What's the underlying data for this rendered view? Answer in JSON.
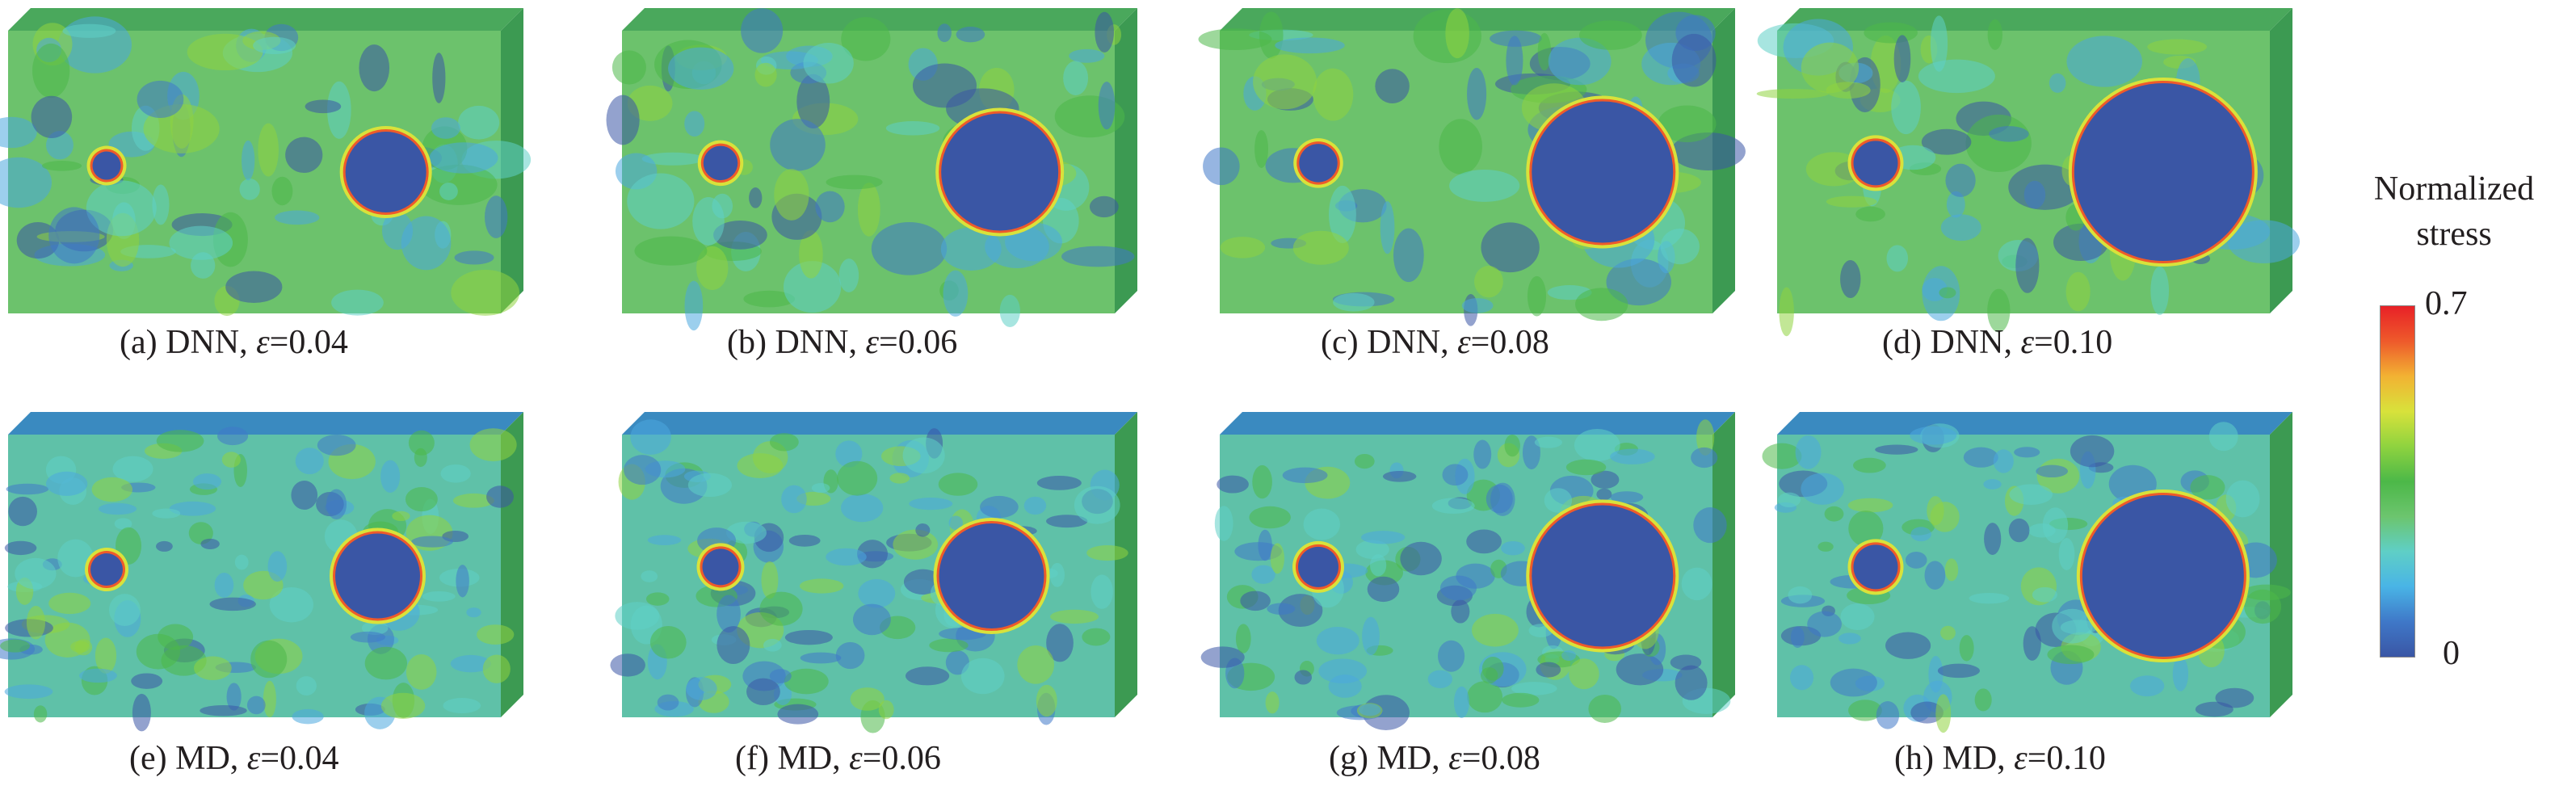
{
  "panels": [
    {
      "prefix": "(a) DNN, ",
      "eps_symbol": "ε",
      "eps_value": "=0.04",
      "method": "DNN",
      "strain": 0.04
    },
    {
      "prefix": "(b) DNN, ",
      "eps_symbol": "ε",
      "eps_value": "=0.06",
      "method": "DNN",
      "strain": 0.06
    },
    {
      "prefix": "(c) DNN, ",
      "eps_symbol": "ε",
      "eps_value": "=0.08",
      "method": "DNN",
      "strain": 0.08
    },
    {
      "prefix": "(d) DNN, ",
      "eps_symbol": "ε",
      "eps_value": "=0.10",
      "method": "DNN",
      "strain": 0.1
    },
    {
      "prefix": "(e) MD, ",
      "eps_symbol": "ε",
      "eps_value": "=0.04",
      "method": "MD",
      "strain": 0.04
    },
    {
      "prefix": "(f) MD, ",
      "eps_symbol": "ε",
      "eps_value": "=0.06",
      "method": "MD",
      "strain": 0.06
    },
    {
      "prefix": "(g) MD, ",
      "eps_symbol": "ε",
      "eps_value": "=0.08",
      "method": "MD",
      "strain": 0.08
    },
    {
      "prefix": "(h) MD, ",
      "eps_symbol": "ε",
      "eps_value": "=0.10",
      "method": "MD",
      "strain": 0.1
    }
  ],
  "colorbar": {
    "title_line1": "Normalized",
    "title_line2": "stress",
    "max_label": "0.7",
    "min_label": "0",
    "colors": [
      "#3a56a5",
      "#3f78c8",
      "#49b4e6",
      "#5fcfc6",
      "#6cc56e",
      "#4cb848",
      "#8fd33f",
      "#d8e23b",
      "#f2b233",
      "#ee5a2b",
      "#e82127"
    ]
  }
}
